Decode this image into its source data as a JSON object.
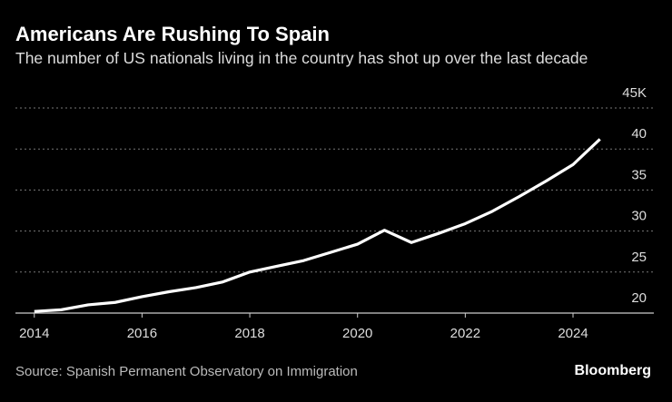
{
  "chart_data": {
    "type": "line",
    "title": "Americans Are Rushing To Spain",
    "subtitle": "The number of US nationals living in the country has shot up over the last decade",
    "source": "Source: Spanish Permanent Observatory on Immigration",
    "brand": "Bloomberg",
    "x": [
      2014,
      2014.5,
      2015,
      2015.5,
      2016,
      2016.5,
      2017,
      2017.5,
      2018,
      2018.5,
      2019,
      2019.5,
      2020,
      2020.5,
      2021,
      2021.5,
      2022,
      2022.5,
      2023,
      2023.5,
      2024,
      2024.5
    ],
    "series": [
      {
        "name": "US nationals",
        "color": "#ffffff",
        "values": [
          20.2,
          20.4,
          21.0,
          21.3,
          22.0,
          22.6,
          23.1,
          23.8,
          25.0,
          25.7,
          26.4,
          27.4,
          28.4,
          30.1,
          28.6,
          29.7,
          30.9,
          32.4,
          34.2,
          36.1,
          38.1,
          41.2
        ]
      }
    ],
    "xlim": [
      2013.65,
      2025.5
    ],
    "xticks": [
      2014,
      2016,
      2018,
      2020,
      2022,
      2024
    ],
    "ylim": [
      20,
      45
    ],
    "yticks": [
      20,
      25,
      30,
      35,
      40,
      {
        "value": 45,
        "label": "45K"
      }
    ],
    "grid": true
  }
}
